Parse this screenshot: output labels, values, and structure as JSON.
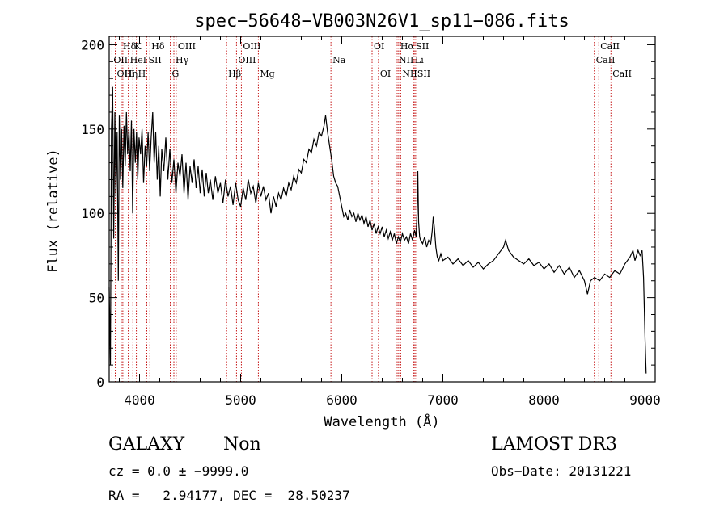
{
  "chart_data": {
    "type": "line",
    "title": "spec−56648−VB003N26V1_sp11−086.fits",
    "xlabel": "Wavelength (Å)",
    "ylabel": "Flux (relative)",
    "xlim": [
      3700,
      9100
    ],
    "ylim": [
      0,
      205
    ],
    "xticks": [
      4000,
      5000,
      6000,
      7000,
      8000,
      9000
    ],
    "yticks": [
      0,
      50,
      100,
      150,
      200
    ],
    "grid": false,
    "series": [
      {
        "values_xy": [
          [
            3700,
            56
          ],
          [
            3712,
            10
          ],
          [
            3722,
            150
          ],
          [
            3734,
            175
          ],
          [
            3745,
            85
          ],
          [
            3756,
            160
          ],
          [
            3766,
            110
          ],
          [
            3778,
            148
          ],
          [
            3790,
            60
          ],
          [
            3800,
            158
          ],
          [
            3812,
            120
          ],
          [
            3822,
            150
          ],
          [
            3834,
            115
          ],
          [
            3846,
            152
          ],
          [
            3858,
            128
          ],
          [
            3870,
            160
          ],
          [
            3882,
            135
          ],
          [
            3895,
            150
          ],
          [
            3908,
            125
          ],
          [
            3920,
            155
          ],
          [
            3932,
            100
          ],
          [
            3945,
            150
          ],
          [
            3958,
            130
          ],
          [
            3970,
            148
          ],
          [
            3982,
            120
          ],
          [
            3995,
            145
          ],
          [
            4010,
            135
          ],
          [
            4025,
            150
          ],
          [
            4040,
            118
          ],
          [
            4055,
            140
          ],
          [
            4070,
            128
          ],
          [
            4085,
            148
          ],
          [
            4100,
            125
          ],
          [
            4115,
            145
          ],
          [
            4130,
            160
          ],
          [
            4145,
            130
          ],
          [
            4160,
            148
          ],
          [
            4175,
            120
          ],
          [
            4190,
            140
          ],
          [
            4205,
            110
          ],
          [
            4220,
            138
          ],
          [
            4240,
            125
          ],
          [
            4260,
            145
          ],
          [
            4280,
            120
          ],
          [
            4300,
            138
          ],
          [
            4320,
            118
          ],
          [
            4340,
            132
          ],
          [
            4360,
            112
          ],
          [
            4380,
            130
          ],
          [
            4400,
            122
          ],
          [
            4420,
            135
          ],
          [
            4440,
            112
          ],
          [
            4460,
            130
          ],
          [
            4480,
            108
          ],
          [
            4500,
            128
          ],
          [
            4520,
            118
          ],
          [
            4540,
            132
          ],
          [
            4560,
            115
          ],
          [
            4580,
            128
          ],
          [
            4600,
            112
          ],
          [
            4620,
            126
          ],
          [
            4640,
            110
          ],
          [
            4660,
            124
          ],
          [
            4680,
            112
          ],
          [
            4700,
            120
          ],
          [
            4725,
            108
          ],
          [
            4750,
            122
          ],
          [
            4775,
            112
          ],
          [
            4800,
            118
          ],
          [
            4825,
            106
          ],
          [
            4850,
            120
          ],
          [
            4875,
            110
          ],
          [
            4900,
            116
          ],
          [
            4925,
            105
          ],
          [
            4950,
            118
          ],
          [
            4975,
            108
          ],
          [
            5000,
            104
          ],
          [
            5025,
            115
          ],
          [
            5050,
            108
          ],
          [
            5075,
            120
          ],
          [
            5100,
            112
          ],
          [
            5125,
            116
          ],
          [
            5150,
            106
          ],
          [
            5175,
            118
          ],
          [
            5200,
            110
          ],
          [
            5225,
            116
          ],
          [
            5250,
            108
          ],
          [
            5275,
            112
          ],
          [
            5300,
            100
          ],
          [
            5325,
            110
          ],
          [
            5350,
            104
          ],
          [
            5375,
            112
          ],
          [
            5400,
            108
          ],
          [
            5425,
            115
          ],
          [
            5450,
            110
          ],
          [
            5475,
            118
          ],
          [
            5500,
            114
          ],
          [
            5525,
            122
          ],
          [
            5550,
            118
          ],
          [
            5575,
            126
          ],
          [
            5600,
            124
          ],
          [
            5625,
            132
          ],
          [
            5650,
            130
          ],
          [
            5675,
            138
          ],
          [
            5700,
            136
          ],
          [
            5725,
            144
          ],
          [
            5750,
            140
          ],
          [
            5775,
            148
          ],
          [
            5800,
            146
          ],
          [
            5825,
            152
          ],
          [
            5840,
            158
          ],
          [
            5860,
            148
          ],
          [
            5880,
            140
          ],
          [
            5900,
            132
          ],
          [
            5920,
            122
          ],
          [
            5940,
            118
          ],
          [
            5960,
            116
          ],
          [
            5980,
            110
          ],
          [
            6000,
            104
          ],
          [
            6020,
            98
          ],
          [
            6040,
            100
          ],
          [
            6060,
            96
          ],
          [
            6080,
            102
          ],
          [
            6100,
            98
          ],
          [
            6120,
            100
          ],
          [
            6140,
            95
          ],
          [
            6160,
            100
          ],
          [
            6180,
            96
          ],
          [
            6200,
            99
          ],
          [
            6220,
            94
          ],
          [
            6240,
            98
          ],
          [
            6260,
            92
          ],
          [
            6280,
            96
          ],
          [
            6300,
            90
          ],
          [
            6320,
            94
          ],
          [
            6340,
            88
          ],
          [
            6360,
            92
          ],
          [
            6380,
            88
          ],
          [
            6400,
            92
          ],
          [
            6420,
            86
          ],
          [
            6440,
            90
          ],
          [
            6460,
            85
          ],
          [
            6480,
            89
          ],
          [
            6500,
            84
          ],
          [
            6520,
            88
          ],
          [
            6540,
            82
          ],
          [
            6560,
            86
          ],
          [
            6580,
            83
          ],
          [
            6600,
            88
          ],
          [
            6620,
            84
          ],
          [
            6640,
            86
          ],
          [
            6660,
            82
          ],
          [
            6680,
            88
          ],
          [
            6700,
            84
          ],
          [
            6720,
            90
          ],
          [
            6735,
            86
          ],
          [
            6745,
            100
          ],
          [
            6752,
            125
          ],
          [
            6760,
            95
          ],
          [
            6770,
            86
          ],
          [
            6780,
            84
          ],
          [
            6800,
            82
          ],
          [
            6820,
            86
          ],
          [
            6840,
            80
          ],
          [
            6860,
            84
          ],
          [
            6880,
            82
          ],
          [
            6895,
            90
          ],
          [
            6905,
            98
          ],
          [
            6915,
            92
          ],
          [
            6930,
            80
          ],
          [
            6945,
            74
          ],
          [
            6960,
            72
          ],
          [
            6980,
            76
          ],
          [
            7000,
            72
          ],
          [
            7050,
            74
          ],
          [
            7100,
            70
          ],
          [
            7150,
            73
          ],
          [
            7200,
            69
          ],
          [
            7250,
            72
          ],
          [
            7300,
            68
          ],
          [
            7350,
            71
          ],
          [
            7400,
            67
          ],
          [
            7450,
            70
          ],
          [
            7500,
            72
          ],
          [
            7550,
            76
          ],
          [
            7600,
            80
          ],
          [
            7620,
            84
          ],
          [
            7650,
            78
          ],
          [
            7700,
            74
          ],
          [
            7750,
            72
          ],
          [
            7800,
            70
          ],
          [
            7850,
            73
          ],
          [
            7900,
            69
          ],
          [
            7950,
            71
          ],
          [
            8000,
            67
          ],
          [
            8050,
            70
          ],
          [
            8100,
            65
          ],
          [
            8150,
            69
          ],
          [
            8200,
            64
          ],
          [
            8250,
            68
          ],
          [
            8300,
            62
          ],
          [
            8350,
            66
          ],
          [
            8400,
            60
          ],
          [
            8430,
            52
          ],
          [
            8460,
            60
          ],
          [
            8500,
            62
          ],
          [
            8550,
            60
          ],
          [
            8600,
            64
          ],
          [
            8650,
            62
          ],
          [
            8700,
            66
          ],
          [
            8750,
            64
          ],
          [
            8800,
            70
          ],
          [
            8850,
            74
          ],
          [
            8880,
            78
          ],
          [
            8900,
            72
          ],
          [
            8930,
            78
          ],
          [
            8950,
            75
          ],
          [
            8970,
            78
          ],
          [
            8985,
            62
          ],
          [
            9000,
            25
          ],
          [
            9010,
            5
          ]
        ]
      }
    ],
    "annotations": [
      {
        "label": "Hδ",
        "x": 3820,
        "row": 1
      },
      {
        "label": "K",
        "x": 3934,
        "row": 1
      },
      {
        "label": "Hδ",
        "x": 4102,
        "row": 1
      },
      {
        "label": "OIII",
        "x": 4363,
        "row": 1
      },
      {
        "label": "OIII",
        "x": 5007,
        "row": 1
      },
      {
        "label": "OI",
        "x": 6300,
        "row": 1
      },
      {
        "label": "Hα",
        "x": 6563,
        "row": 1
      },
      {
        "label": "SII",
        "x": 6717,
        "row": 1
      },
      {
        "label": "CaII",
        "x": 8542,
        "row": 1
      },
      {
        "label": "OII",
        "x": 3727,
        "row": 2
      },
      {
        "label": "HeI",
        "x": 3889,
        "row": 2
      },
      {
        "label": "SII",
        "x": 4072,
        "row": 2
      },
      {
        "label": "Hγ",
        "x": 4340,
        "row": 2
      },
      {
        "label": "OIII",
        "x": 4959,
        "row": 2
      },
      {
        "label": "Na",
        "x": 5893,
        "row": 2
      },
      {
        "label": "NII",
        "x": 6548,
        "row": 2
      },
      {
        "label": "Li",
        "x": 6708,
        "row": 2
      },
      {
        "label": "CaII",
        "x": 8498,
        "row": 2
      },
      {
        "label": "OIII",
        "x": 3760,
        "row": 3
      },
      {
        "label": "Hη",
        "x": 3835,
        "row": 3
      },
      {
        "label": "H",
        "x": 3969,
        "row": 3
      },
      {
        "label": "G",
        "x": 4304,
        "row": 3
      },
      {
        "label": "Hβ",
        "x": 4861,
        "row": 3
      },
      {
        "label": "Mg",
        "x": 5175,
        "row": 3
      },
      {
        "label": "OI",
        "x": 6363,
        "row": 3
      },
      {
        "label": "NII",
        "x": 6583,
        "row": 3
      },
      {
        "label": "SII",
        "x": 6731,
        "row": 3
      },
      {
        "label": "CaII",
        "x": 8662,
        "row": 3
      }
    ],
    "lines_x": [
      3727,
      3760,
      3820,
      3835,
      3889,
      3934,
      3969,
      4072,
      4102,
      4304,
      4340,
      4363,
      4861,
      4959,
      5007,
      5175,
      5893,
      6300,
      6363,
      6548,
      6563,
      6583,
      6708,
      6717,
      6731,
      8498,
      8542,
      8662
    ],
    "colors": {
      "spectrum": "#000000",
      "line_marker": "#c00000",
      "axes": "#000000"
    }
  },
  "info": {
    "class": "GALAXY",
    "subclass": "Non",
    "survey": "LAMOST DR3",
    "cz": "cz = 0.0 ± −9999.0",
    "obs_date": "Obs−Date: 20131221",
    "radec": "RA =   2.94177, DEC =  28.50237"
  }
}
